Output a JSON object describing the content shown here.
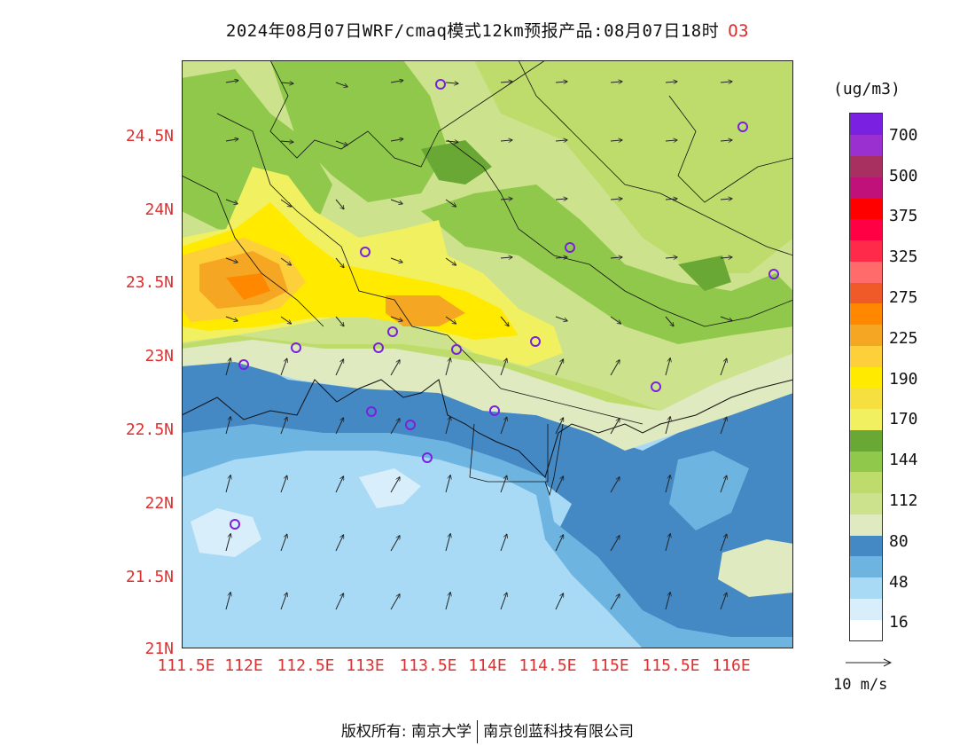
{
  "title": {
    "text": "2024年08月07日WRF/cmaq模式12km预报产品:08月07日18时",
    "pollutant": "O3"
  },
  "axes": {
    "lat_labels": [
      "24.5N",
      "24N",
      "23.5N",
      "23N",
      "22.5N",
      "22N",
      "21.5N",
      "21N"
    ],
    "lon_labels": [
      "111.5E",
      "112E",
      "112.5E",
      "113E",
      "113.5E",
      "114E",
      "114.5E",
      "115E",
      "115.5E",
      "116E"
    ]
  },
  "colorbar": {
    "units": "(ug/m3)",
    "labels": [
      "700",
      "500",
      "375",
      "325",
      "275",
      "225",
      "190",
      "170",
      "144",
      "112",
      "80",
      "48",
      "16"
    ],
    "colors": [
      "#ffffff",
      "#d8eefa",
      "#a8daf5",
      "#6eb4e0",
      "#4488c4",
      "#dfeac0",
      "#cde28c",
      "#bedc6c",
      "#8fc84a",
      "#69a834",
      "#f0f060",
      "#f5e040",
      "#ffea00",
      "#fdcf3a",
      "#f5a623",
      "#ff8800",
      "#f05a28",
      "#ff6a6a",
      "#ff2a4a",
      "#ff0044",
      "#ff0000",
      "#c0107a",
      "#a83060",
      "#9a30d0",
      "#7a20e0"
    ]
  },
  "wind_reference": {
    "label": "10 m/s"
  },
  "stations": 17,
  "footer": {
    "left": "版权所有: 南京大学",
    "right": "南京创蓝科技有限公司"
  }
}
